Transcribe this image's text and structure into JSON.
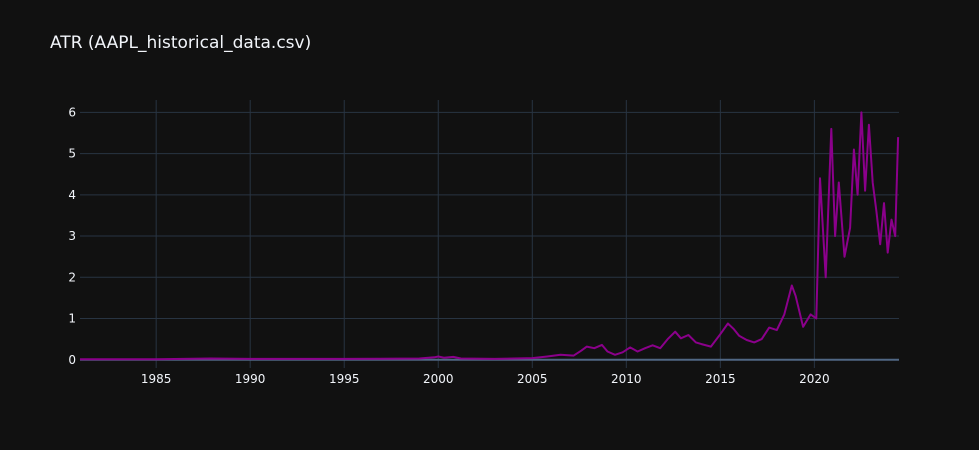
{
  "colors": {
    "background": "#111111",
    "grid": "#283442",
    "text": "#f2f5fa",
    "line": "#8b008b"
  },
  "chart_data": {
    "type": "line",
    "title": "ATR (AAPL_historical_data.csv)",
    "xlabel": "",
    "ylabel": "",
    "xlim": [
      1980.95,
      2024.5
    ],
    "ylim": [
      -0.2,
      6.3
    ],
    "x_ticks": [
      1985,
      1990,
      1995,
      2000,
      2005,
      2010,
      2015,
      2020
    ],
    "x_tick_labels": [
      "1985",
      "1990",
      "1995",
      "2000",
      "2005",
      "2010",
      "2015",
      "2020"
    ],
    "y_ticks": [
      0,
      1,
      2,
      3,
      4,
      5,
      6
    ],
    "y_tick_labels": [
      "0",
      "1",
      "2",
      "3",
      "4",
      "5",
      "6"
    ],
    "grid": true,
    "legend": "none",
    "series": [
      {
        "color": "#8b008b",
        "x": [
          1980.95,
          1985.0,
          1987.9,
          1990.0,
          1995.0,
          1999.0,
          1999.8,
          2000.0,
          2000.3,
          2000.8,
          2001.2,
          2003.0,
          2005.0,
          2005.8,
          2006.5,
          2007.2,
          2007.6,
          2007.9,
          2008.3,
          2008.7,
          2009.0,
          2009.4,
          2009.8,
          2010.2,
          2010.6,
          2011.0,
          2011.4,
          2011.8,
          2012.2,
          2012.6,
          2012.9,
          2013.3,
          2013.7,
          2014.0,
          2014.5,
          2015.0,
          2015.4,
          2015.7,
          2016.0,
          2016.4,
          2016.8,
          2017.2,
          2017.6,
          2018.0,
          2018.4,
          2018.8,
          2019.0,
          2019.4,
          2019.8,
          2020.1,
          2020.3,
          2020.6,
          2020.9,
          2021.1,
          2021.3,
          2021.6,
          2021.9,
          2022.1,
          2022.3,
          2022.5,
          2022.7,
          2022.9,
          2023.1,
          2023.3,
          2023.5,
          2023.7,
          2023.9,
          2024.1,
          2024.3,
          2024.45
        ],
        "y": [
          0.01,
          0.01,
          0.03,
          0.02,
          0.02,
          0.03,
          0.06,
          0.08,
          0.05,
          0.07,
          0.03,
          0.02,
          0.04,
          0.08,
          0.12,
          0.1,
          0.22,
          0.32,
          0.28,
          0.36,
          0.2,
          0.12,
          0.18,
          0.3,
          0.2,
          0.28,
          0.35,
          0.28,
          0.5,
          0.68,
          0.52,
          0.6,
          0.42,
          0.38,
          0.32,
          0.62,
          0.88,
          0.75,
          0.58,
          0.48,
          0.42,
          0.5,
          0.78,
          0.72,
          1.1,
          1.8,
          1.55,
          0.8,
          1.1,
          1.0,
          4.4,
          2.0,
          5.6,
          3.0,
          4.3,
          2.5,
          3.2,
          5.1,
          4.0,
          6.0,
          4.1,
          5.7,
          4.3,
          3.6,
          2.8,
          3.8,
          2.6,
          3.4,
          3.0,
          5.4
        ]
      }
    ]
  }
}
